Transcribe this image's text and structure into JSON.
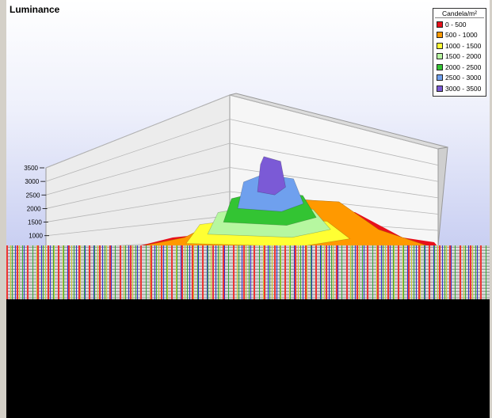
{
  "chart_data": {
    "type": "surface",
    "title": "Luminance",
    "zlabel": "Candela/m²",
    "zlim": [
      0,
      3500
    ],
    "z_ticks": [
      "3500",
      "3000",
      "2500",
      "2000",
      "1500",
      "1000"
    ],
    "legend": {
      "title": "Candela/m²",
      "position": "top-right",
      "bands": [
        {
          "label": "0 - 500",
          "range": [
            0,
            500
          ],
          "color": "#e8101a"
        },
        {
          "label": "500 - 1000",
          "range": [
            500,
            1000
          ],
          "color": "#ff9900"
        },
        {
          "label": "1000 - 1500",
          "range": [
            1000,
            1500
          ],
          "color": "#ffff33"
        },
        {
          "label": "1500 - 2000",
          "range": [
            1500,
            2000
          ],
          "color": "#b6f7a0"
        },
        {
          "label": "2000 - 2500",
          "range": [
            2000,
            2500
          ],
          "color": "#33c433"
        },
        {
          "label": "2500 - 3000",
          "range": [
            2500,
            3000
          ],
          "color": "#6fa0ee"
        },
        {
          "label": "3000 - 3500",
          "range": [
            3000,
            3500
          ],
          "color": "#7b5ad6"
        }
      ]
    },
    "peak_value": 3400,
    "grid": true
  }
}
